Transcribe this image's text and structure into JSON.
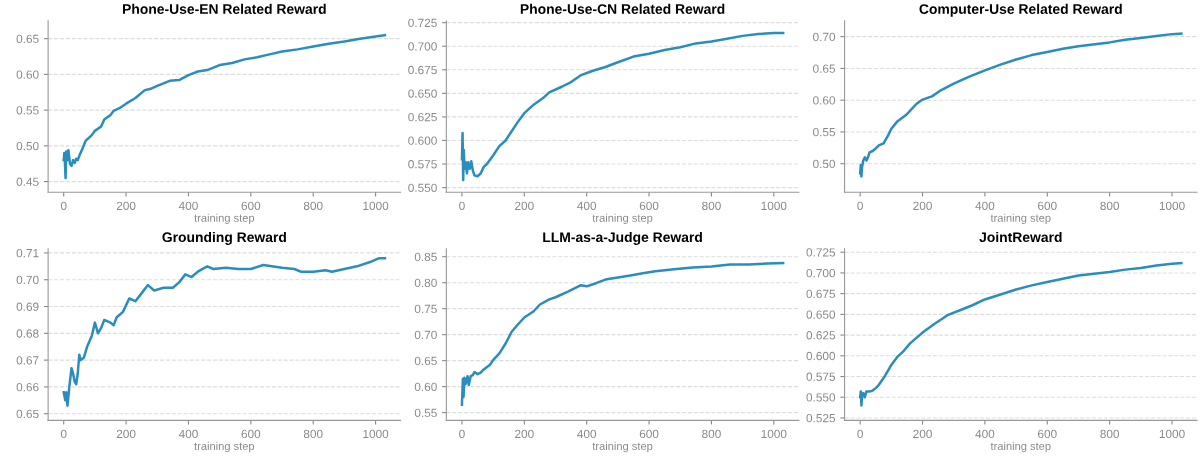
{
  "chart_data": [
    {
      "type": "line",
      "title": "Phone-Use-EN Related Reward",
      "xlabel": "training step",
      "xlim": [
        -50,
        1080
      ],
      "xticks": [
        0,
        200,
        400,
        600,
        800,
        1000
      ],
      "ylim": [
        0.435,
        0.675
      ],
      "yticks": [
        {
          "value": 0.45,
          "label": "0.45"
        },
        {
          "value": 0.5,
          "label": "0.50"
        },
        {
          "value": 0.55,
          "label": "0.55"
        },
        {
          "value": 0.6,
          "label": "0.60"
        },
        {
          "value": 0.65,
          "label": "0.65"
        }
      ],
      "grid": "y",
      "legend": false,
      "marker": "none",
      "line_style": "solid",
      "series": [
        {
          "color": "#2b8cbe",
          "x": [
            0,
            2,
            4,
            6,
            8,
            12,
            15,
            20,
            25,
            30,
            35,
            40,
            45,
            50,
            60,
            70,
            90,
            100,
            120,
            130,
            150,
            160,
            180,
            200,
            230,
            260,
            280,
            300,
            340,
            370,
            400,
            430,
            460,
            500,
            540,
            580,
            620,
            660,
            700,
            750,
            800,
            850,
            900,
            950,
            1000,
            1030
          ],
          "values": [
            0.48,
            0.49,
            0.475,
            0.455,
            0.492,
            0.48,
            0.494,
            0.475,
            0.472,
            0.48,
            0.476,
            0.482,
            0.48,
            0.486,
            0.496,
            0.507,
            0.515,
            0.521,
            0.527,
            0.537,
            0.543,
            0.549,
            0.553,
            0.559,
            0.567,
            0.578,
            0.58,
            0.584,
            0.591,
            0.592,
            0.599,
            0.604,
            0.606,
            0.613,
            0.616,
            0.621,
            0.624,
            0.628,
            0.632,
            0.635,
            0.639,
            0.643,
            0.646,
            0.65,
            0.653,
            0.655
          ]
        }
      ]
    },
    {
      "type": "line",
      "title": "Phone-Use-CN Related Reward",
      "xlabel": "training step",
      "xlim": [
        -50,
        1080
      ],
      "xticks": [
        0,
        200,
        400,
        600,
        800,
        1000
      ],
      "ylim": [
        0.545,
        0.727
      ],
      "yticks": [
        {
          "value": 0.55,
          "label": "0.550"
        },
        {
          "value": 0.575,
          "label": "0.575"
        },
        {
          "value": 0.6,
          "label": "0.600"
        },
        {
          "value": 0.625,
          "label": "0.625"
        },
        {
          "value": 0.65,
          "label": "0.650"
        },
        {
          "value": 0.675,
          "label": "0.675"
        },
        {
          "value": 0.7,
          "label": "0.700"
        },
        {
          "value": 0.725,
          "label": "0.725"
        }
      ],
      "grid": "y",
      "legend": false,
      "marker": "none",
      "line_style": "solid",
      "series": [
        {
          "color": "#2b8cbe",
          "x": [
            0,
            2,
            4,
            6,
            8,
            12,
            16,
            20,
            25,
            30,
            35,
            40,
            50,
            60,
            70,
            80,
            100,
            120,
            140,
            160,
            180,
            200,
            230,
            260,
            280,
            320,
            350,
            380,
            420,
            460,
            500,
            550,
            600,
            650,
            700,
            750,
            800,
            850,
            900,
            950,
            1000,
            1030
          ],
          "values": [
            0.58,
            0.608,
            0.558,
            0.59,
            0.57,
            0.577,
            0.565,
            0.577,
            0.57,
            0.578,
            0.568,
            0.563,
            0.562,
            0.565,
            0.572,
            0.575,
            0.584,
            0.594,
            0.6,
            0.61,
            0.62,
            0.629,
            0.638,
            0.645,
            0.651,
            0.657,
            0.662,
            0.669,
            0.674,
            0.678,
            0.683,
            0.689,
            0.692,
            0.696,
            0.699,
            0.703,
            0.705,
            0.708,
            0.711,
            0.713,
            0.714,
            0.714
          ]
        }
      ]
    },
    {
      "type": "line",
      "title": "Computer-Use Related Reward",
      "xlabel": "training step",
      "xlim": [
        -50,
        1080
      ],
      "xticks": [
        0,
        200,
        400,
        600,
        800,
        1000
      ],
      "ylim": [
        0.455,
        0.725
      ],
      "yticks": [
        {
          "value": 0.5,
          "label": "0.50"
        },
        {
          "value": 0.55,
          "label": "0.55"
        },
        {
          "value": 0.6,
          "label": "0.60"
        },
        {
          "value": 0.65,
          "label": "0.65"
        },
        {
          "value": 0.7,
          "label": "0.70"
        }
      ],
      "grid": "y",
      "legend": false,
      "marker": "none",
      "line_style": "solid",
      "series": [
        {
          "color": "#2b8cbe",
          "x": [
            0,
            2,
            4,
            6,
            10,
            15,
            20,
            25,
            30,
            40,
            50,
            60,
            75,
            90,
            100,
            120,
            150,
            180,
            200,
            230,
            260,
            300,
            350,
            400,
            450,
            500,
            550,
            600,
            650,
            700,
            800,
            850,
            900,
            950,
            1000,
            1030
          ],
          "values": [
            0.485,
            0.498,
            0.48,
            0.495,
            0.505,
            0.51,
            0.505,
            0.51,
            0.518,
            0.52,
            0.524,
            0.529,
            0.532,
            0.545,
            0.555,
            0.567,
            0.578,
            0.594,
            0.601,
            0.606,
            0.616,
            0.626,
            0.637,
            0.647,
            0.656,
            0.664,
            0.671,
            0.676,
            0.681,
            0.685,
            0.691,
            0.695,
            0.698,
            0.701,
            0.704,
            0.705
          ]
        }
      ]
    },
    {
      "type": "line",
      "title": "Grounding Reward",
      "xlabel": "training step",
      "xlim": [
        -50,
        1080
      ],
      "xticks": [
        0,
        200,
        400,
        600,
        800,
        1000
      ],
      "ylim": [
        0.6475,
        0.7115
      ],
      "yticks": [
        {
          "value": 0.65,
          "label": "0.65"
        },
        {
          "value": 0.66,
          "label": "0.66"
        },
        {
          "value": 0.67,
          "label": "0.67"
        },
        {
          "value": 0.68,
          "label": "0.68"
        },
        {
          "value": 0.69,
          "label": "0.69"
        },
        {
          "value": 0.7,
          "label": "0.70"
        },
        {
          "value": 0.71,
          "label": "0.71"
        }
      ],
      "grid": "y",
      "legend": false,
      "marker": "none",
      "line_style": "solid",
      "series": [
        {
          "color": "#2b8cbe",
          "x": [
            0,
            5,
            8,
            12,
            18,
            25,
            30,
            35,
            40,
            45,
            50,
            55,
            65,
            75,
            90,
            100,
            110,
            120,
            130,
            150,
            160,
            170,
            190,
            210,
            230,
            250,
            270,
            290,
            320,
            350,
            370,
            390,
            410,
            430,
            460,
            480,
            520,
            560,
            600,
            640,
            700,
            740,
            760,
            800,
            840,
            860,
            900,
            940,
            980,
            1010,
            1030
          ],
          "values": [
            0.658,
            0.655,
            0.658,
            0.653,
            0.66,
            0.667,
            0.665,
            0.662,
            0.661,
            0.665,
            0.672,
            0.67,
            0.671,
            0.675,
            0.679,
            0.684,
            0.68,
            0.682,
            0.685,
            0.684,
            0.683,
            0.686,
            0.688,
            0.693,
            0.692,
            0.695,
            0.698,
            0.696,
            0.697,
            0.697,
            0.699,
            0.702,
            0.701,
            0.703,
            0.705,
            0.704,
            0.7045,
            0.704,
            0.704,
            0.7055,
            0.7045,
            0.704,
            0.703,
            0.703,
            0.7035,
            0.703,
            0.704,
            0.705,
            0.7065,
            0.708,
            0.708
          ]
        }
      ]
    },
    {
      "type": "line",
      "title": "LLM-as-a-Judge Reward",
      "xlabel": "training step",
      "xlim": [
        -50,
        1080
      ],
      "xticks": [
        0,
        200,
        400,
        600,
        800,
        1000
      ],
      "ylim": [
        0.535,
        0.865
      ],
      "yticks": [
        {
          "value": 0.55,
          "label": "0.55"
        },
        {
          "value": 0.6,
          "label": "0.60"
        },
        {
          "value": 0.65,
          "label": "0.65"
        },
        {
          "value": 0.7,
          "label": "0.70"
        },
        {
          "value": 0.75,
          "label": "0.75"
        },
        {
          "value": 0.8,
          "label": "0.80"
        },
        {
          "value": 0.85,
          "label": "0.85"
        }
      ],
      "grid": "y",
      "legend": false,
      "marker": "none",
      "line_style": "solid",
      "series": [
        {
          "color": "#2b8cbe",
          "x": [
            0,
            3,
            5,
            8,
            12,
            18,
            22,
            28,
            35,
            40,
            50,
            60,
            70,
            90,
            100,
            120,
            140,
            160,
            180,
            200,
            230,
            250,
            280,
            300,
            340,
            380,
            400,
            430,
            460,
            500,
            540,
            580,
            620,
            680,
            740,
            800,
            860,
            920,
            980,
            1030
          ],
          "values": [
            0.565,
            0.615,
            0.58,
            0.617,
            0.605,
            0.62,
            0.603,
            0.62,
            0.622,
            0.628,
            0.624,
            0.627,
            0.633,
            0.642,
            0.651,
            0.664,
            0.683,
            0.706,
            0.72,
            0.733,
            0.745,
            0.758,
            0.768,
            0.772,
            0.783,
            0.795,
            0.793,
            0.799,
            0.806,
            0.81,
            0.814,
            0.818,
            0.822,
            0.826,
            0.829,
            0.831,
            0.835,
            0.835,
            0.837,
            0.838
          ]
        }
      ]
    },
    {
      "type": "line",
      "title": "JointReward",
      "xlabel": "training step",
      "xlim": [
        -50,
        1080
      ],
      "xticks": [
        0,
        200,
        400,
        600,
        800,
        1000
      ],
      "ylim": [
        0.522,
        0.729
      ],
      "yticks": [
        {
          "value": 0.525,
          "label": "0.525"
        },
        {
          "value": 0.55,
          "label": "0.550"
        },
        {
          "value": 0.575,
          "label": "0.575"
        },
        {
          "value": 0.6,
          "label": "0.600"
        },
        {
          "value": 0.625,
          "label": "0.625"
        },
        {
          "value": 0.65,
          "label": "0.650"
        },
        {
          "value": 0.675,
          "label": "0.675"
        },
        {
          "value": 0.7,
          "label": "0.700"
        },
        {
          "value": 0.725,
          "label": "0.725"
        }
      ],
      "grid": "y",
      "legend": false,
      "marker": "none",
      "line_style": "solid",
      "series": [
        {
          "color": "#2b8cbe",
          "x": [
            0,
            2,
            4,
            6,
            10,
            15,
            20,
            30,
            40,
            50,
            60,
            80,
            100,
            120,
            140,
            160,
            200,
            240,
            280,
            320,
            360,
            400,
            450,
            500,
            550,
            600,
            650,
            700,
            800,
            850,
            900,
            950,
            1000,
            1030
          ],
          "values": [
            0.55,
            0.557,
            0.54,
            0.552,
            0.555,
            0.55,
            0.557,
            0.557,
            0.558,
            0.561,
            0.565,
            0.576,
            0.589,
            0.599,
            0.606,
            0.615,
            0.628,
            0.639,
            0.649,
            0.655,
            0.661,
            0.668,
            0.674,
            0.68,
            0.685,
            0.689,
            0.693,
            0.697,
            0.701,
            0.704,
            0.706,
            0.709,
            0.711,
            0.712
          ]
        }
      ]
    }
  ]
}
